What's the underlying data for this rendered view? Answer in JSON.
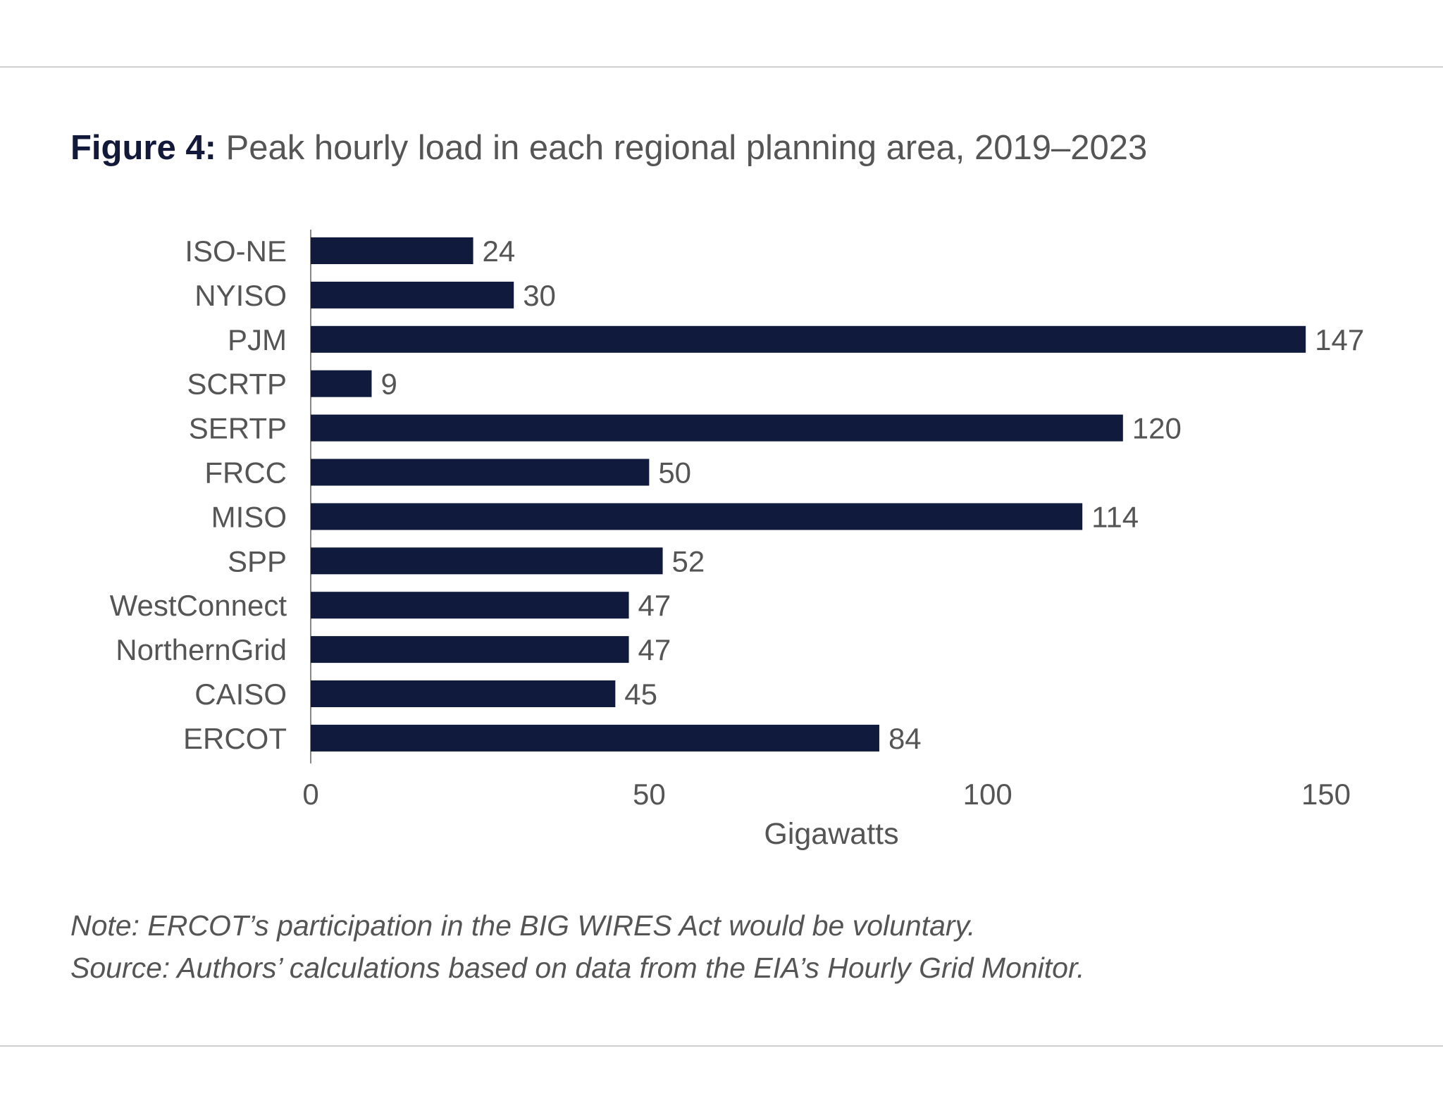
{
  "header": {
    "figure_label": "Figure 4:",
    "title": "Peak hourly load in each regional planning area, 2019–2023"
  },
  "chart_data": {
    "type": "bar",
    "orientation": "horizontal",
    "title": "Peak hourly load in each regional planning area, 2019–2023",
    "categories": [
      "ISO-NE",
      "NYISO",
      "PJM",
      "SCRTP",
      "SERTP",
      "FRCC",
      "MISO",
      "SPP",
      "WestConnect",
      "NorthernGrid",
      "CAISO",
      "ERCOT"
    ],
    "values": [
      24,
      30,
      147,
      9,
      120,
      50,
      114,
      52,
      47,
      47,
      45,
      84
    ],
    "xlabel": "Gigawatts",
    "ylabel": "",
    "xlim": [
      0,
      150
    ],
    "xticks": [
      0,
      50,
      100,
      150
    ],
    "bar_color": "#0f1a3c",
    "grid": false,
    "legend": "none"
  },
  "footer": {
    "note": "Note: ERCOT’s participation in the BIG WIRES Act would be voluntary.",
    "source": "Source: Authors’ calculations based on data from the EIA’s Hourly Grid Monitor."
  }
}
